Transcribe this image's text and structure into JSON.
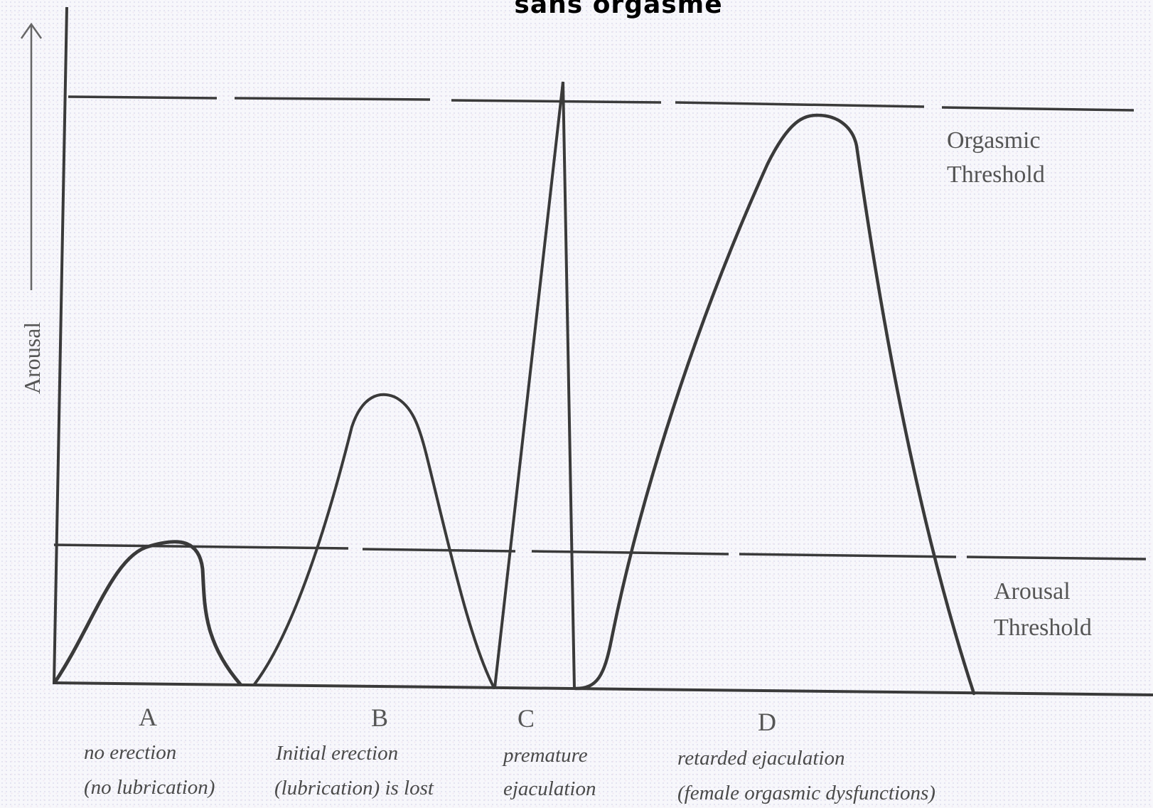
{
  "header": {
    "title": "sans orgasme"
  },
  "axis": {
    "y_label": "Arousal"
  },
  "thresholds": {
    "orgasmic": {
      "line1": "Orgasmic",
      "line2": "Threshold"
    },
    "arousal": {
      "line1": "Arousal",
      "line2": "Threshold"
    }
  },
  "curves": [
    {
      "letter": "A",
      "line1": "no erection",
      "line2": "(no lubrication)"
    },
    {
      "letter": "B",
      "line1": "Initial erection",
      "line2": "(lubrication) is lost"
    },
    {
      "letter": "C",
      "line1": "premature",
      "line2": "ejaculation"
    },
    {
      "letter": "D",
      "line1": "retarded ejaculation",
      "line2": "(female orgasmic dysfunctions)"
    }
  ],
  "colors": {
    "ink": "#3a3a3a",
    "label": "#555555"
  }
}
